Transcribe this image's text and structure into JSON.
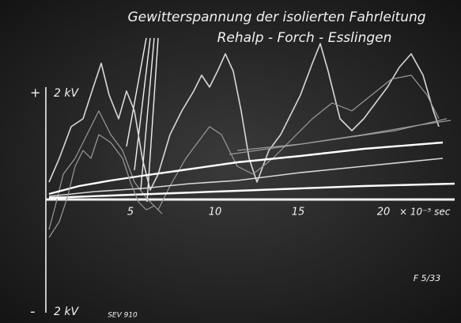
{
  "title": "Gewitterspannung der isolierten Fahrleitung",
  "subtitle": "Rehalp - Forch - Esslingen",
  "axis": {
    "plus": "+",
    "top_label": "2 kV",
    "minus": "-",
    "bottom_label": "2 kV",
    "time_ticks": [
      "5",
      "10",
      "15",
      "20"
    ],
    "time_unit": "× 10⁻⁵ sec"
  },
  "notes": {
    "figure": "F 5/33",
    "archive": "SEV 910"
  }
}
